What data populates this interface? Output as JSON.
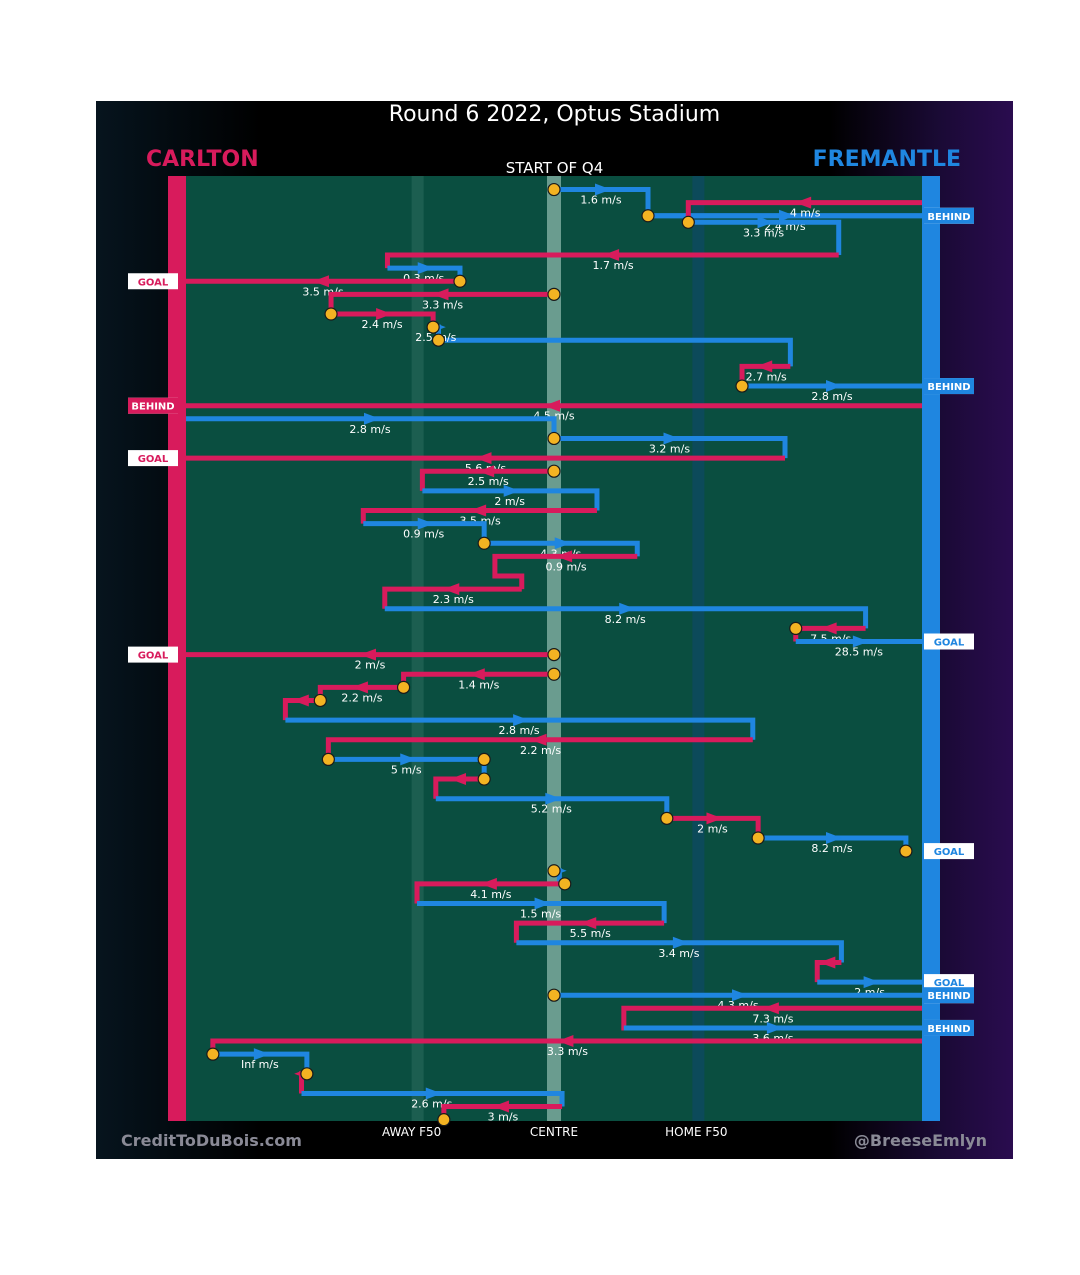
{
  "title": "Round 6 2022, Optus Stadium",
  "period": "START OF Q4",
  "teams": {
    "left": "CARLTON",
    "right": "FREMANTLE",
    "left_color": "#d81b5c",
    "right_color": "#1f86e0"
  },
  "credits": {
    "left": "CreditToDuBois.com",
    "right": "@BreeseEmlyn"
  },
  "colors": {
    "field": "#0a4e40",
    "carlton": "#d81b5c",
    "fremantle": "#1f86e0",
    "marker": "#f3b322"
  },
  "chart_data": {
    "type": "line",
    "x_ticks": [
      "AWAY F50",
      "CENTRE",
      "HOME F50"
    ],
    "series": [
      {
        "name": "CARLTON",
        "color": "#d81b5c"
      },
      {
        "name": "FREMANTLE",
        "color": "#1f86e0"
      }
    ],
    "chains": [
      {
        "team": "F",
        "path": [
          [
            0,
            1
          ],
          [
            35,
            1
          ],
          [
            35,
            5
          ],
          [
            137,
            5
          ]
        ],
        "speed": "1.6 m/s",
        "y": 1,
        "start": "marker"
      },
      {
        "team": "F",
        "path": [
          [
            35,
            5
          ],
          [
            137,
            5
          ]
        ],
        "speed": "2.4 m/s",
        "y": 2
      },
      {
        "team": "C",
        "path": [
          [
            137,
            3
          ],
          [
            50,
            3
          ],
          [
            50,
            6
          ]
        ],
        "speed": "4 m/s",
        "y": 3,
        "marker_end": true
      },
      {
        "team": "F",
        "path": [
          [
            50,
            6
          ],
          [
            106,
            6
          ],
          [
            106,
            11
          ]
        ],
        "speed": "3.3 m/s",
        "y": 4
      },
      {
        "team": "C",
        "path": [
          [
            106,
            11
          ],
          [
            -62,
            11
          ],
          [
            -62,
            13
          ]
        ],
        "speed": "1.7 m/s",
        "y": 5
      },
      {
        "team": "F",
        "path": [
          [
            -62,
            13
          ],
          [
            -35,
            13
          ],
          [
            -35,
            15
          ]
        ],
        "speed": "0.3 m/s",
        "y": 6
      },
      {
        "team": "C",
        "path": [
          [
            -35,
            15
          ],
          [
            -137,
            15
          ]
        ],
        "speed": "3.5 m/s",
        "y": 7
      },
      {
        "team": "C",
        "path": [
          [
            0,
            17
          ],
          [
            -83,
            17
          ],
          [
            -83,
            20
          ]
        ],
        "speed": "3.3 m/s",
        "y": 8
      },
      {
        "team": "C",
        "path": [
          [
            -83,
            20
          ],
          [
            -45,
            20
          ],
          [
            -45,
            22
          ]
        ],
        "speed": "2.4 m/s",
        "y": 9
      },
      {
        "team": "F",
        "path": [
          [
            -45,
            22
          ],
          [
            -43,
            22
          ],
          [
            -43,
            24
          ],
          [
            88,
            24
          ],
          [
            88,
            28
          ]
        ],
        "speed": "2.5 m/s",
        "y": 10
      },
      {
        "team": "C",
        "path": [
          [
            88,
            28
          ],
          [
            70,
            28
          ],
          [
            70,
            31
          ],
          [
            137,
            31
          ]
        ],
        "speed": "2.7 m/s",
        "y": 11
      },
      {
        "team": "F",
        "path": [
          [
            70,
            31
          ],
          [
            137,
            31
          ]
        ],
        "speed": "2.8 m/s",
        "y": 12
      },
      {
        "team": "C",
        "path": [
          [
            137,
            34
          ],
          [
            -137,
            34
          ]
        ],
        "speed": "4.5 m/s",
        "y": 13
      },
      {
        "team": "F",
        "path": [
          [
            -137,
            36
          ],
          [
            0,
            36
          ],
          [
            0,
            39
          ]
        ],
        "speed": "2.8 m/s",
        "y": 14
      },
      {
        "team": "F",
        "path": [
          [
            0,
            39
          ],
          [
            86,
            39
          ],
          [
            86,
            42
          ]
        ],
        "speed": "3.2 m/s",
        "y": 15
      },
      {
        "team": "C",
        "path": [
          [
            86,
            42
          ],
          [
            -137,
            42
          ]
        ],
        "speed": "5.6 m/s",
        "y": 16
      },
      {
        "team": "C",
        "path": [
          [
            0,
            44
          ],
          [
            -49,
            44
          ],
          [
            -49,
            47
          ]
        ],
        "speed": "2.5 m/s",
        "y": 17
      },
      {
        "team": "F",
        "path": [
          [
            -49,
            47
          ],
          [
            16,
            47
          ],
          [
            16,
            50
          ]
        ],
        "speed": "2 m/s",
        "y": 18
      },
      {
        "team": "C",
        "path": [
          [
            16,
            50
          ],
          [
            -71,
            50
          ],
          [
            -71,
            52
          ]
        ],
        "speed": "3.5 m/s",
        "y": 19
      },
      {
        "team": "F",
        "path": [
          [
            -71,
            52
          ],
          [
            -26,
            52
          ],
          [
            -26,
            55
          ]
        ],
        "speed": "0.9 m/s",
        "y": 20
      },
      {
        "team": "F",
        "path": [
          [
            -26,
            55
          ],
          [
            31,
            55
          ],
          [
            31,
            57
          ]
        ],
        "speed": "4.3 m/s",
        "y": 21
      },
      {
        "team": "C",
        "path": [
          [
            31,
            57
          ],
          [
            -22,
            57
          ],
          [
            -22,
            60
          ],
          [
            -12,
            60
          ],
          [
            -12,
            62
          ]
        ],
        "speed": "0.9 m/s",
        "y": 22
      },
      {
        "team": "C",
        "path": [
          [
            -12,
            62
          ],
          [
            -63,
            62
          ],
          [
            -63,
            65
          ]
        ],
        "speed": "2.3 m/s",
        "y": 23
      },
      {
        "team": "F",
        "path": [
          [
            -63,
            65
          ],
          [
            116,
            65
          ],
          [
            116,
            68
          ]
        ],
        "speed": "8.2 m/s",
        "y": 24
      },
      {
        "team": "C",
        "path": [
          [
            116,
            68
          ],
          [
            90,
            68
          ],
          [
            90,
            70
          ]
        ],
        "speed": "7.5 m/s",
        "y": 25
      },
      {
        "team": "F",
        "path": [
          [
            90,
            70
          ],
          [
            137,
            70
          ]
        ],
        "speed": "28.5 m/s",
        "y": 26
      },
      {
        "team": "C",
        "path": [
          [
            0,
            72
          ],
          [
            -137,
            72
          ]
        ],
        "speed": "2 m/s",
        "y": 27
      },
      {
        "team": "C",
        "path": [
          [
            0,
            75
          ],
          [
            -56,
            75
          ],
          [
            -56,
            77
          ]
        ],
        "speed": "1.4 m/s",
        "y": 28
      },
      {
        "team": "C",
        "path": [
          [
            -56,
            77
          ],
          [
            -87,
            77
          ],
          [
            -87,
            79
          ]
        ],
        "speed": "2.2 m/s",
        "y": 29
      },
      {
        "team": "C",
        "path": [
          [
            -87,
            79
          ],
          [
            -100,
            79
          ],
          [
            -100,
            82
          ]
        ],
        "speed": "",
        "y": 30
      },
      {
        "team": "F",
        "path": [
          [
            -100,
            82
          ],
          [
            74,
            82
          ],
          [
            74,
            85
          ]
        ],
        "speed": "2.8 m/s",
        "y": 31
      },
      {
        "team": "C",
        "path": [
          [
            74,
            85
          ],
          [
            -84,
            85
          ],
          [
            -84,
            88
          ]
        ],
        "speed": "2.2 m/s",
        "y": 32
      },
      {
        "team": "F",
        "path": [
          [
            -84,
            88
          ],
          [
            -26,
            88
          ],
          [
            -26,
            91
          ]
        ],
        "speed": "5 m/s",
        "y": 33
      },
      {
        "team": "C",
        "path": [
          [
            -26,
            91
          ],
          [
            -44,
            91
          ],
          [
            -44,
            94
          ]
        ],
        "speed": "",
        "y": 34
      },
      {
        "team": "F",
        "path": [
          [
            -44,
            94
          ],
          [
            42,
            94
          ],
          [
            42,
            97
          ]
        ],
        "speed": "5.2 m/s",
        "y": 35
      },
      {
        "team": "C",
        "path": [
          [
            42,
            97
          ],
          [
            76,
            97
          ],
          [
            76,
            100
          ]
        ],
        "speed": "2 m/s",
        "y": 36
      },
      {
        "team": "F",
        "path": [
          [
            76,
            100
          ],
          [
            131,
            100
          ],
          [
            131,
            102
          ]
        ],
        "speed": "8.2 m/s",
        "y": 37
      },
      {
        "team": "F",
        "path": [
          [
            0,
            105
          ],
          [
            2,
            105
          ],
          [
            2,
            107
          ]
        ],
        "speed": "",
        "y": 38
      },
      {
        "team": "C",
        "path": [
          [
            4,
            107
          ],
          [
            -51,
            107
          ],
          [
            -51,
            110
          ]
        ],
        "speed": "4.1 m/s",
        "y": 39
      },
      {
        "team": "F",
        "path": [
          [
            -51,
            110
          ],
          [
            41,
            110
          ],
          [
            41,
            113
          ]
        ],
        "speed": "1.5 m/s",
        "y": 40
      },
      {
        "team": "C",
        "path": [
          [
            41,
            113
          ],
          [
            -14,
            113
          ],
          [
            -14,
            116
          ]
        ],
        "speed": "5.5 m/s",
        "y": 41
      },
      {
        "team": "F",
        "path": [
          [
            -14,
            116
          ],
          [
            107,
            116
          ],
          [
            107,
            119
          ]
        ],
        "speed": "3.4 m/s",
        "y": 42
      },
      {
        "team": "C",
        "path": [
          [
            107,
            119
          ],
          [
            98,
            119
          ],
          [
            98,
            122
          ]
        ],
        "speed": "",
        "y": 43
      },
      {
        "team": "F",
        "path": [
          [
            98,
            122
          ],
          [
            137,
            122
          ]
        ],
        "speed": "2 m/s",
        "y": 44
      },
      {
        "team": "F",
        "path": [
          [
            0,
            124
          ],
          [
            137,
            124
          ]
        ],
        "speed": "4.3 m/s",
        "y": 45
      },
      {
        "team": "C",
        "path": [
          [
            137,
            126
          ],
          [
            26,
            126
          ],
          [
            26,
            129
          ],
          [
            137,
            129
          ]
        ],
        "speed": "7.3 m/s",
        "y": 46
      },
      {
        "team": "F",
        "path": [
          [
            26,
            129
          ],
          [
            137,
            129
          ]
        ],
        "speed": "3.6 m/s",
        "y": 47
      },
      {
        "team": "C",
        "path": [
          [
            137,
            131
          ],
          [
            -127,
            131
          ],
          [
            -127,
            133
          ]
        ],
        "speed": "3.3 m/s",
        "y": 48
      },
      {
        "team": "F",
        "path": [
          [
            -127,
            133
          ],
          [
            -92,
            133
          ],
          [
            -92,
            136
          ]
        ],
        "speed": "Inf m/s",
        "y": 49
      },
      {
        "team": "C",
        "path": [
          [
            -92,
            136
          ],
          [
            -94,
            136
          ],
          [
            -94,
            139
          ]
        ],
        "speed": "",
        "y": 50
      },
      {
        "team": "F",
        "path": [
          [
            -94,
            139
          ],
          [
            3,
            139
          ],
          [
            3,
            141
          ]
        ],
        "speed": "2.6 m/s",
        "y": 51
      },
      {
        "team": "C",
        "path": [
          [
            3,
            141
          ],
          [
            -41,
            141
          ],
          [
            -41,
            143
          ]
        ],
        "speed": "3 m/s",
        "y": 52
      }
    ],
    "results": [
      {
        "side": "right",
        "label": "BEHIND",
        "y": 5
      },
      {
        "side": "left",
        "label": "GOAL",
        "y": 15
      },
      {
        "side": "right",
        "label": "BEHIND",
        "y": 31
      },
      {
        "side": "left",
        "label": "BEHIND",
        "y": 34
      },
      {
        "side": "left",
        "label": "GOAL",
        "y": 42
      },
      {
        "side": "right",
        "label": "GOAL",
        "y": 70
      },
      {
        "side": "left",
        "label": "GOAL",
        "y": 72
      },
      {
        "side": "right",
        "label": "GOAL",
        "y": 102
      },
      {
        "side": "right",
        "label": "GOAL",
        "y": 122
      },
      {
        "side": "right",
        "label": "BEHIND",
        "y": 124
      },
      {
        "side": "right",
        "label": "BEHIND",
        "y": 129
      }
    ],
    "markers": [
      [
        0,
        1
      ],
      [
        35,
        5
      ],
      [
        50,
        6
      ],
      [
        -35,
        15
      ],
      [
        0,
        17
      ],
      [
        -83,
        20
      ],
      [
        -45,
        22
      ],
      [
        -43,
        24
      ],
      [
        70,
        31
      ],
      [
        0,
        39
      ],
      [
        0,
        44
      ],
      [
        -26,
        55
      ],
      [
        90,
        68
      ],
      [
        0,
        72
      ],
      [
        0,
        75
      ],
      [
        -56,
        77
      ],
      [
        -87,
        79
      ],
      [
        -84,
        88
      ],
      [
        -26,
        88
      ],
      [
        -26,
        91
      ],
      [
        42,
        97
      ],
      [
        76,
        100
      ],
      [
        131,
        102
      ],
      [
        0,
        105
      ],
      [
        4,
        107
      ],
      [
        0,
        124
      ],
      [
        -127,
        133
      ],
      [
        -92,
        136
      ],
      [
        -41,
        143
      ]
    ]
  }
}
